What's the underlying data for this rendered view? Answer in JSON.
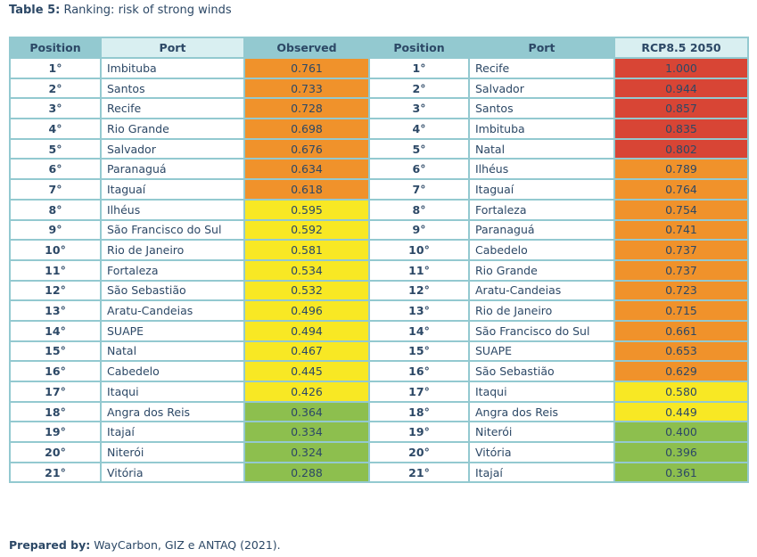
{
  "title": {
    "label": "Table 5:",
    "text": "Ranking: risk of strong winds"
  },
  "headers": [
    "Position",
    "Port",
    "Observed",
    "Position",
    "Port",
    "RCP8.5 2050"
  ],
  "colors": {
    "orange": "#f0922b",
    "yellow": "#f8e824",
    "green": "#8dbf4e",
    "red": "#d84535"
  },
  "rows": [
    {
      "p1": "1°",
      "port1": "Imbituba",
      "v1": "0.761",
      "c1": "orange",
      "p2": "1°",
      "port2": "Recife",
      "v2": "1.000",
      "c2": "red"
    },
    {
      "p1": "2°",
      "port1": "Santos",
      "v1": "0.733",
      "c1": "orange",
      "p2": "2°",
      "port2": "Salvador",
      "v2": "0.944",
      "c2": "red"
    },
    {
      "p1": "3°",
      "port1": "Recife",
      "v1": "0.728",
      "c1": "orange",
      "p2": "3°",
      "port2": "Santos",
      "v2": "0.857",
      "c2": "red"
    },
    {
      "p1": "4°",
      "port1": "Rio Grande",
      "v1": "0.698",
      "c1": "orange",
      "p2": "4°",
      "port2": "Imbituba",
      "v2": "0.835",
      "c2": "red"
    },
    {
      "p1": "5°",
      "port1": "Salvador",
      "v1": "0.676",
      "c1": "orange",
      "p2": "5°",
      "port2": "Natal",
      "v2": "0.802",
      "c2": "red"
    },
    {
      "p1": "6°",
      "port1": "Paranaguá",
      "v1": "0.634",
      "c1": "orange",
      "p2": "6°",
      "port2": "Ilhéus",
      "v2": "0.789",
      "c2": "orange"
    },
    {
      "p1": "7°",
      "port1": "Itaguaí",
      "v1": "0.618",
      "c1": "orange",
      "p2": "7°",
      "port2": "Itaguaí",
      "v2": "0.764",
      "c2": "orange"
    },
    {
      "p1": "8°",
      "port1": "Ilhéus",
      "v1": "0.595",
      "c1": "yellow",
      "p2": "8°",
      "port2": "Fortaleza",
      "v2": "0.754",
      "c2": "orange"
    },
    {
      "p1": "9°",
      "port1": "São Francisco do Sul",
      "v1": "0.592",
      "c1": "yellow",
      "p2": "9°",
      "port2": "Paranaguá",
      "v2": "0.741",
      "c2": "orange"
    },
    {
      "p1": "10°",
      "port1": "Rio de Janeiro",
      "v1": "0.581",
      "c1": "yellow",
      "p2": "10°",
      "port2": "Cabedelo",
      "v2": "0.737",
      "c2": "orange"
    },
    {
      "p1": "11°",
      "port1": "Fortaleza",
      "v1": "0.534",
      "c1": "yellow",
      "p2": "11°",
      "port2": "Rio Grande",
      "v2": "0.737",
      "c2": "orange"
    },
    {
      "p1": "12°",
      "port1": "São Sebastião",
      "v1": "0.532",
      "c1": "yellow",
      "p2": "12°",
      "port2": "Aratu-Candeias",
      "v2": "0.723",
      "c2": "orange"
    },
    {
      "p1": "13°",
      "port1": "Aratu-Candeias",
      "v1": "0.496",
      "c1": "yellow",
      "p2": "13°",
      "port2": "Rio de Janeiro",
      "v2": "0.715",
      "c2": "orange"
    },
    {
      "p1": "14°",
      "port1": "SUAPE",
      "v1": "0.494",
      "c1": "yellow",
      "p2": "14°",
      "port2": "São Francisco do Sul",
      "v2": "0.661",
      "c2": "orange"
    },
    {
      "p1": "15°",
      "port1": "Natal",
      "v1": "0.467",
      "c1": "yellow",
      "p2": "15°",
      "port2": "SUAPE",
      "v2": "0.653",
      "c2": "orange"
    },
    {
      "p1": "16°",
      "port1": "Cabedelo",
      "v1": "0.445",
      "c1": "yellow",
      "p2": "16°",
      "port2": "São Sebastião",
      "v2": "0.629",
      "c2": "orange"
    },
    {
      "p1": "17°",
      "port1": "Itaqui",
      "v1": "0.426",
      "c1": "yellow",
      "p2": "17°",
      "port2": "Itaqui",
      "v2": "0.580",
      "c2": "yellow"
    },
    {
      "p1": "18°",
      "port1": "Angra dos Reis",
      "v1": "0.364",
      "c1": "green",
      "p2": "18°",
      "port2": "Angra dos Reis",
      "v2": "0.449",
      "c2": "yellow"
    },
    {
      "p1": "19°",
      "port1": "Itajaí",
      "v1": "0.334",
      "c1": "green",
      "p2": "19°",
      "port2": "Niterói",
      "v2": "0.400",
      "c2": "green"
    },
    {
      "p1": "20°",
      "port1": "Niterói",
      "v1": "0.324",
      "c1": "green",
      "p2": "20°",
      "port2": "Vitória",
      "v2": "0.396",
      "c2": "green"
    },
    {
      "p1": "21°",
      "port1": "Vitória",
      "v1": "0.288",
      "c1": "green",
      "p2": "21°",
      "port2": "Itajaí",
      "v2": "0.361",
      "c2": "green"
    }
  ],
  "footer": {
    "label": "Prepared by:",
    "text": "WayCarbon, GIZ e ANTAQ (2021)."
  }
}
